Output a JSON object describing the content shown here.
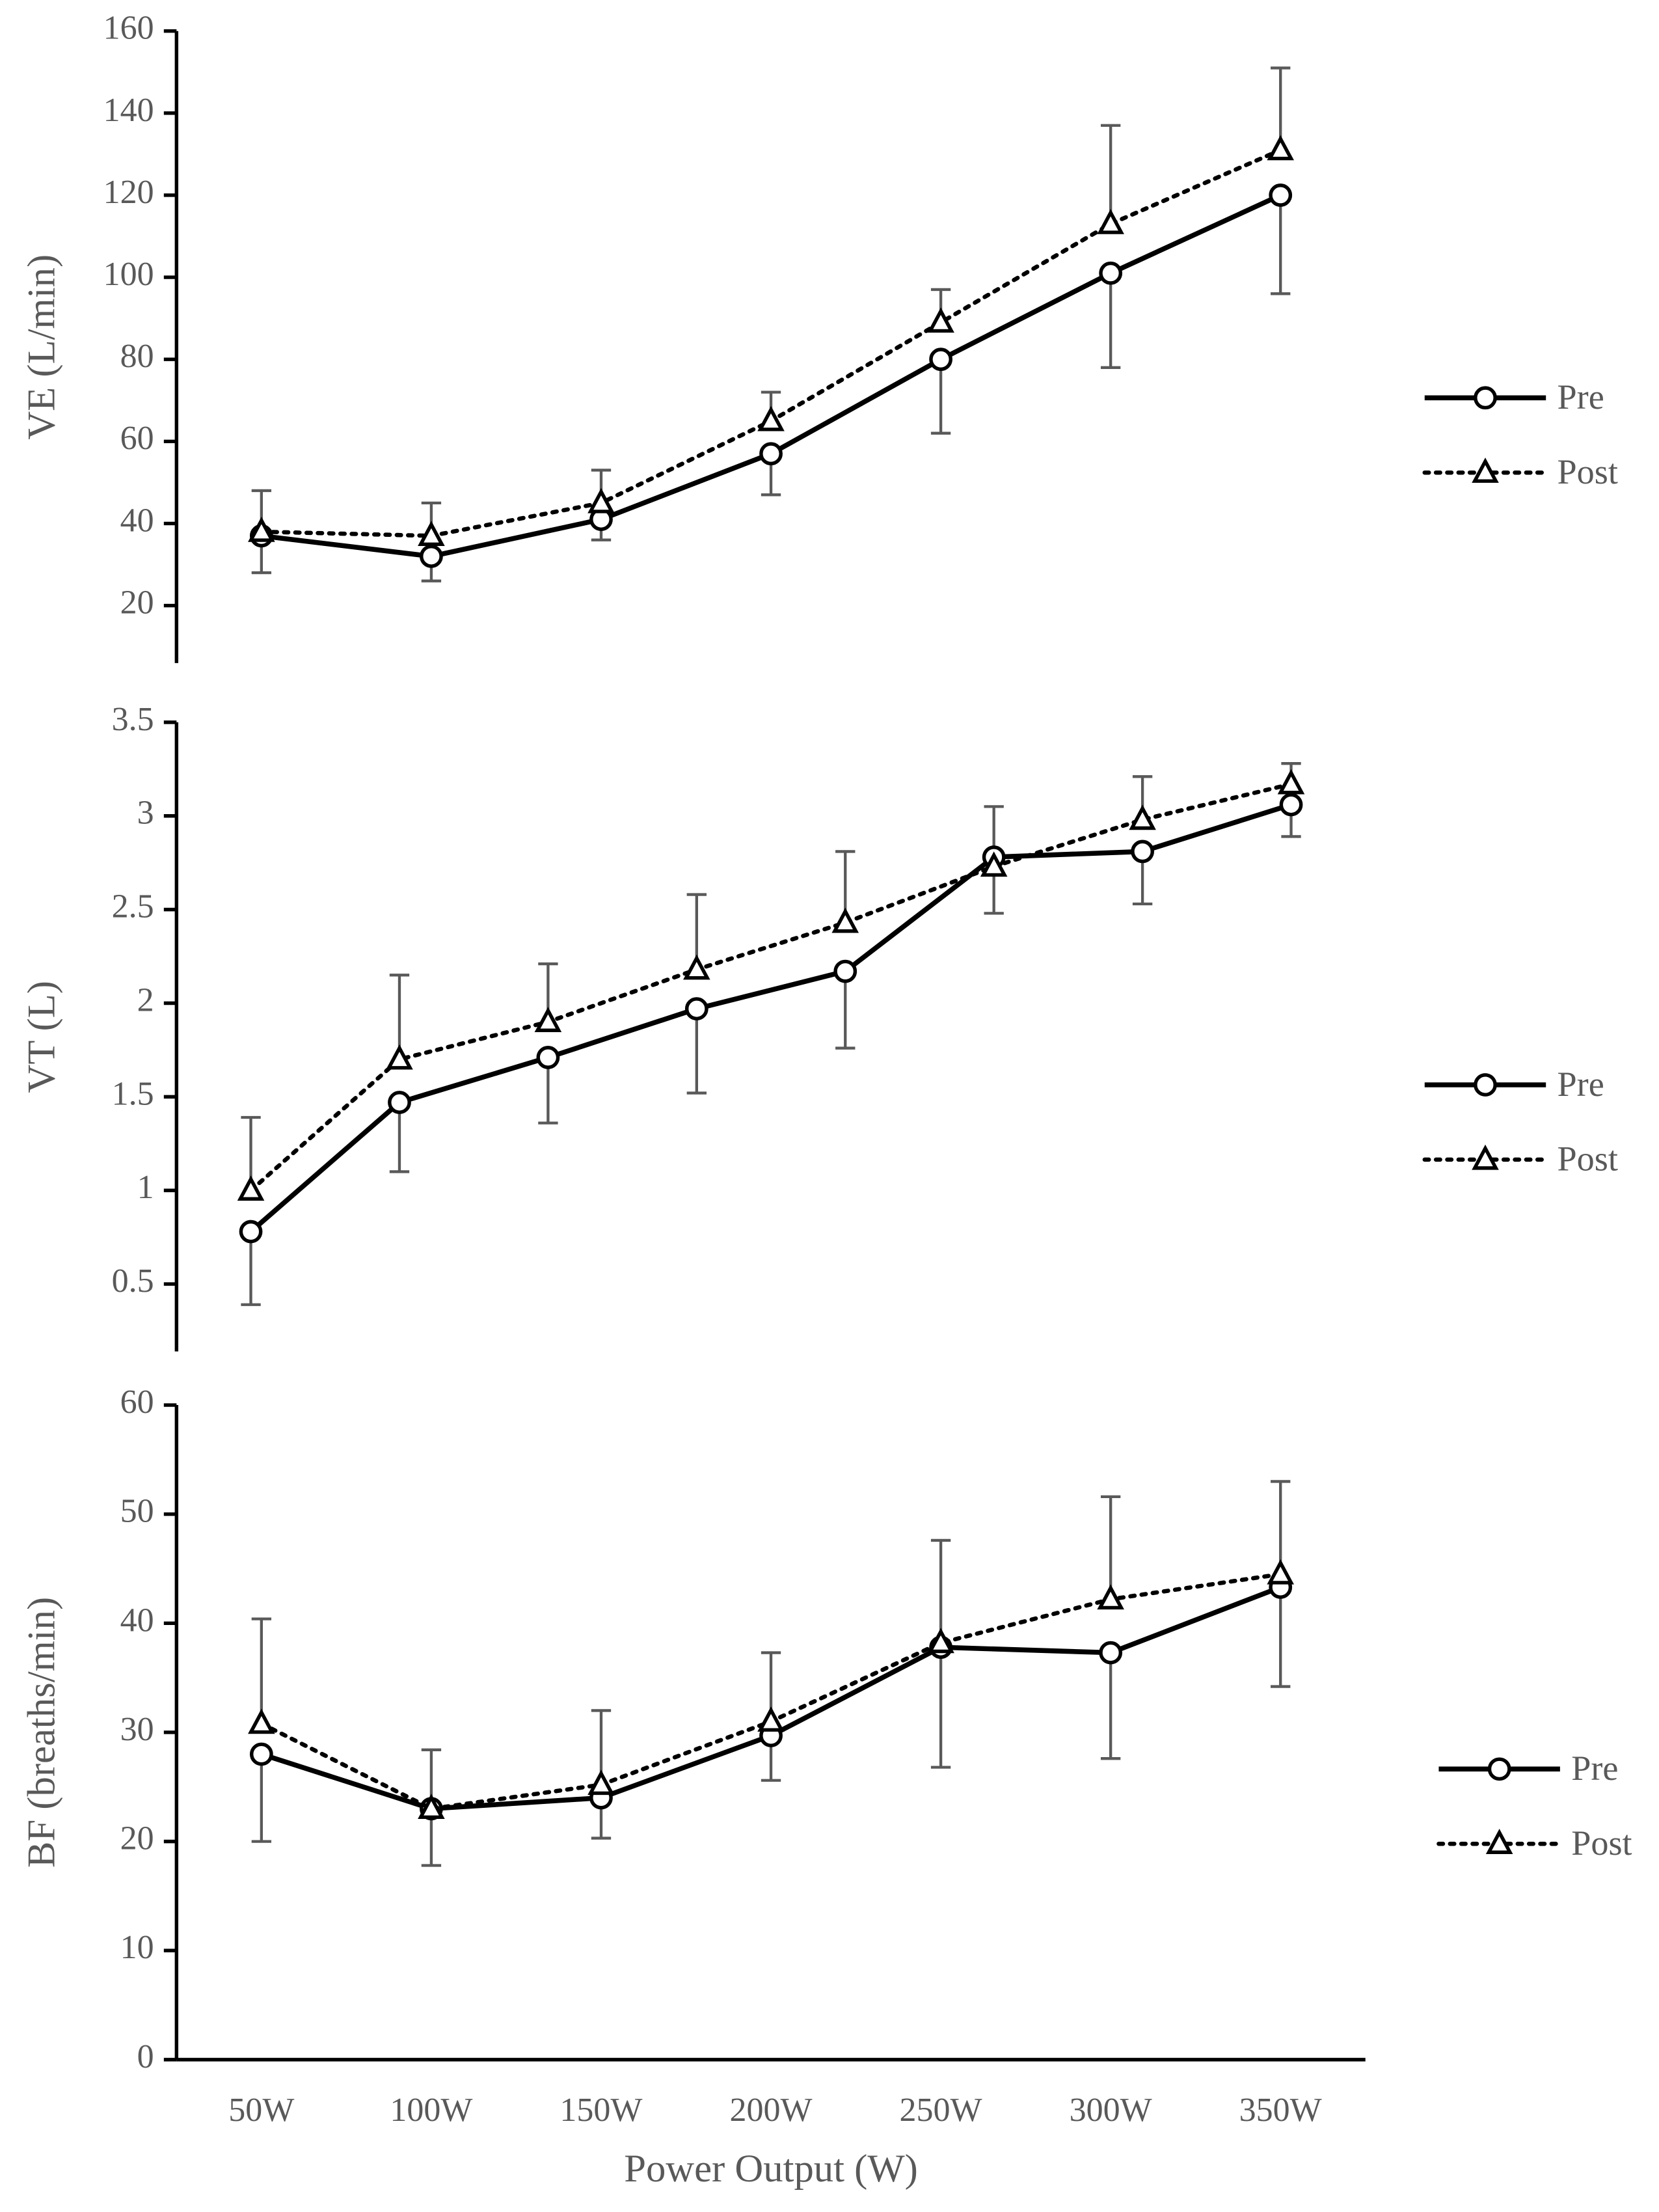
{
  "chart_data": [
    {
      "type": "line",
      "ylabel": "VE (L/min)",
      "ylim": [
        6,
        160
      ],
      "yticks": [
        20,
        40,
        60,
        80,
        100,
        120,
        140,
        160
      ],
      "legend": "right",
      "series": [
        {
          "name": "Pre",
          "color": "#000000",
          "style": "solid",
          "marker": "circle",
          "error_direction": "down",
          "values": [
            37,
            32,
            41,
            57,
            80,
            101,
            120
          ],
          "errors": [
            9,
            6,
            5,
            10,
            18,
            23,
            24
          ]
        },
        {
          "name": "Post",
          "color": "#000000",
          "style": "dotted",
          "marker": "triangle",
          "error_direction": "up",
          "values": [
            38,
            37,
            45,
            65,
            89,
            113,
            131
          ],
          "errors": [
            10,
            8,
            8,
            7,
            8,
            24,
            20
          ]
        }
      ]
    },
    {
      "type": "line",
      "ylabel": "VT (L)",
      "ylim": [
        0.14,
        3.5
      ],
      "yticks": [
        0.5,
        1,
        1.5,
        2,
        2.5,
        3,
        3.5
      ],
      "legend": "right",
      "series": [
        {
          "name": "Pre",
          "color": "#000000",
          "style": "solid",
          "marker": "circle",
          "error_direction": "down",
          "values": [
            0.78,
            1.47,
            1.71,
            1.97,
            2.17,
            2.78,
            2.81,
            3.06
          ],
          "errors": [
            0.39,
            0.37,
            0.35,
            0.45,
            0.41,
            0.3,
            0.28,
            0.17
          ]
        },
        {
          "name": "Post",
          "color": "#000000",
          "style": "dotted",
          "marker": "triangle",
          "error_direction": "up",
          "values": [
            1.0,
            1.7,
            1.9,
            2.18,
            2.43,
            2.73,
            2.98,
            3.17
          ],
          "errors": [
            0.39,
            0.45,
            0.31,
            0.4,
            0.38,
            0.32,
            0.23,
            0.11
          ]
        }
      ]
    },
    {
      "type": "line",
      "ylabel": "BF (breaths/min)",
      "xlabel": "Power Output (W)",
      "ylim": [
        0,
        60
      ],
      "yticks": [
        0,
        10,
        20,
        30,
        40,
        50,
        60
      ],
      "legend": "right",
      "categories": [
        "50W",
        "100W",
        "150W",
        "200W",
        "250W",
        "300W",
        "350W"
      ],
      "series": [
        {
          "name": "Pre",
          "color": "#000000",
          "style": "solid",
          "marker": "circle",
          "error_direction": "down",
          "values": [
            28,
            23,
            24,
            29.7,
            37.8,
            37.3,
            43.3
          ],
          "errors": [
            8,
            5.2,
            3.7,
            4.1,
            11,
            9.7,
            9.1
          ]
        },
        {
          "name": "Post",
          "color": "#000000",
          "style": "dotted",
          "marker": "triangle",
          "error_direction": "up",
          "values": [
            30.8,
            23,
            25.2,
            31,
            38.2,
            42.2,
            44.5
          ],
          "errors": [
            9.6,
            5.4,
            6.8,
            6.3,
            9.4,
            9.4,
            8.5
          ]
        }
      ]
    }
  ]
}
